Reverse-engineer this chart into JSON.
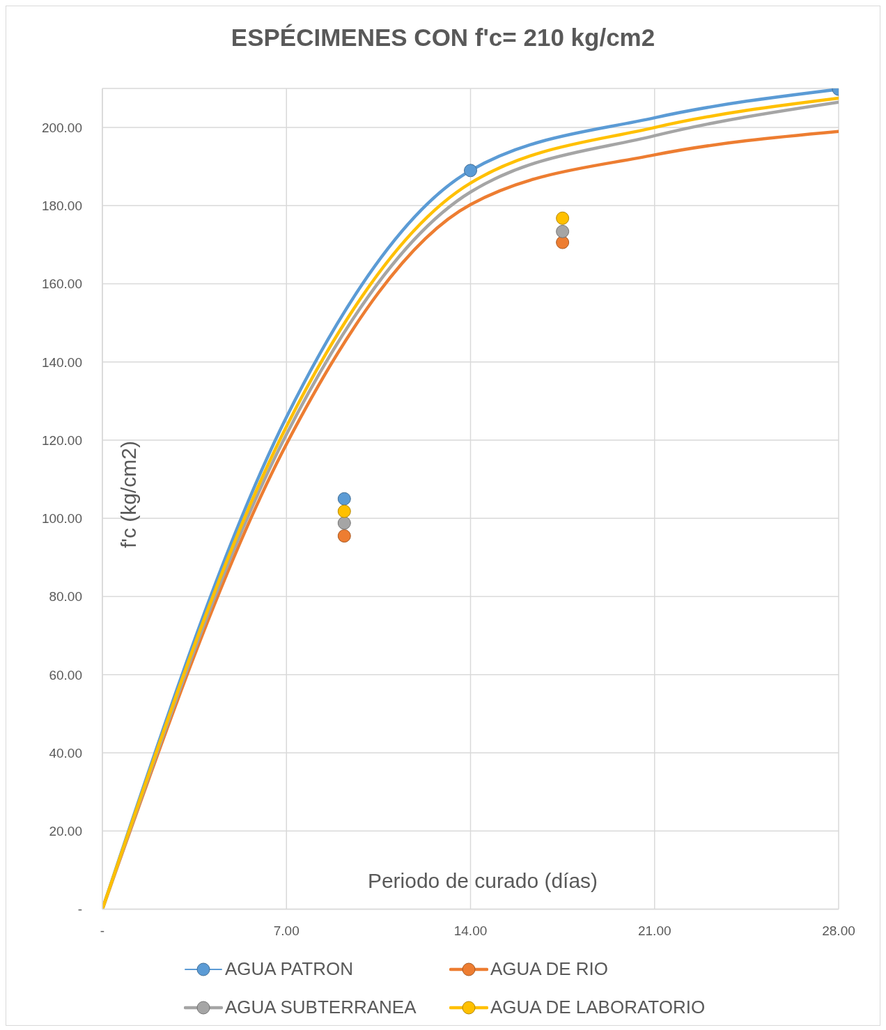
{
  "chart_data": {
    "type": "line",
    "title": "ESPÉCIMENES CON f'c= 210 kg/cm2",
    "xlabel": "Periodo de curado (días)",
    "ylabel": "f'c (kg/cm2)",
    "xlim": [
      0,
      28
    ],
    "xticks": [
      {
        "value": 0,
        "label": "-"
      },
      {
        "value": 7,
        "label": "7.00"
      },
      {
        "value": 14,
        "label": "14.00"
      },
      {
        "value": 21,
        "label": "21.00"
      },
      {
        "value": 28,
        "label": "28.00"
      }
    ],
    "ylim": [
      0,
      210
    ],
    "yticks": [
      {
        "value": 0,
        "label": "-"
      },
      {
        "value": 20,
        "label": "20.00"
      },
      {
        "value": 40,
        "label": "40.00"
      },
      {
        "value": 60,
        "label": "60.00"
      },
      {
        "value": 80,
        "label": "80.00"
      },
      {
        "value": 100,
        "label": "100.00"
      },
      {
        "value": 120,
        "label": "120.00"
      },
      {
        "value": 140,
        "label": "140.00"
      },
      {
        "value": 160,
        "label": "160.00"
      },
      {
        "value": 180,
        "label": "180.00"
      },
      {
        "value": 200,
        "label": "200.00"
      }
    ],
    "grid": true,
    "legend": "bottom",
    "marker": "circle",
    "series": [
      {
        "name": "AGUA PATRON",
        "color": "#5b9bd5",
        "marker": "none",
        "x": [
          0,
          7,
          14,
          21,
          28
        ],
        "values": [
          0,
          125.9,
          189.0,
          202.5,
          209.8
        ]
      },
      {
        "name": "AGUA DE RIO",
        "color": "#ed7d31",
        "marker": "none",
        "x": [
          0,
          7,
          14,
          21,
          28
        ],
        "values": [
          0,
          119.0,
          180.3,
          193.0,
          199.0
        ]
      },
      {
        "name": "AGUA SUBTERRANEA",
        "color": "#a5a5a5",
        "marker": "none",
        "x": [
          0,
          7,
          14,
          21,
          28
        ],
        "values": [
          0,
          121.5,
          183.5,
          197.9,
          206.5
        ]
      },
      {
        "name": "AGUA DE LABORATORIO",
        "color": "#ffc000",
        "marker": "none",
        "x": [
          0,
          7,
          14,
          21,
          28
        ],
        "values": [
          0,
          123.5,
          185.8,
          200.0,
          207.5
        ]
      },
      {
        "color": "#5b9bd5",
        "type": "scatter",
        "x": [
          9.2,
          14,
          28
        ],
        "values": [
          105.0,
          189.0,
          209.8
        ]
      },
      {
        "color": "#ed7d31",
        "type": "scatter",
        "x": [
          9.2,
          17.5
        ],
        "values": [
          95.5,
          170.6
        ]
      },
      {
        "color": "#a5a5a5",
        "type": "scatter",
        "x": [
          9.2,
          17.5
        ],
        "values": [
          98.8,
          173.4
        ]
      },
      {
        "color": "#ffc000",
        "type": "scatter",
        "x": [
          9.2,
          17.5
        ],
        "values": [
          101.8,
          176.8
        ]
      }
    ]
  }
}
